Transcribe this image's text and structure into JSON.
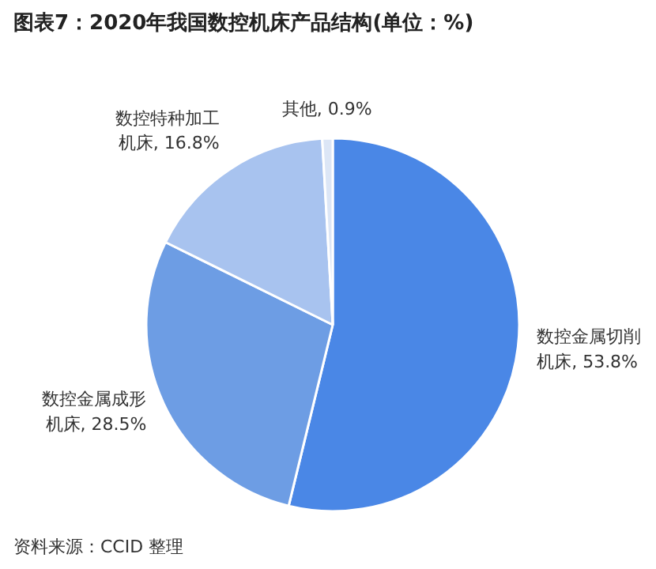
{
  "chart_data": {
    "type": "pie",
    "title": "图表7：2020年我国数控机床产品结构(单位：%)",
    "categories": [
      "数控金属切削机床",
      "数控金属成形机床",
      "数控特种加工机床",
      "其他"
    ],
    "values": [
      53.8,
      28.5,
      16.8,
      0.9
    ],
    "value_labels": [
      "53.8%",
      "28.5%",
      "16.8%",
      "0.9%"
    ],
    "colors": [
      "#4a87e6",
      "#6d9de4",
      "#a8c3ef",
      "#dce6f6"
    ],
    "annotations": [
      "资料来源：CCID 整理"
    ]
  }
}
